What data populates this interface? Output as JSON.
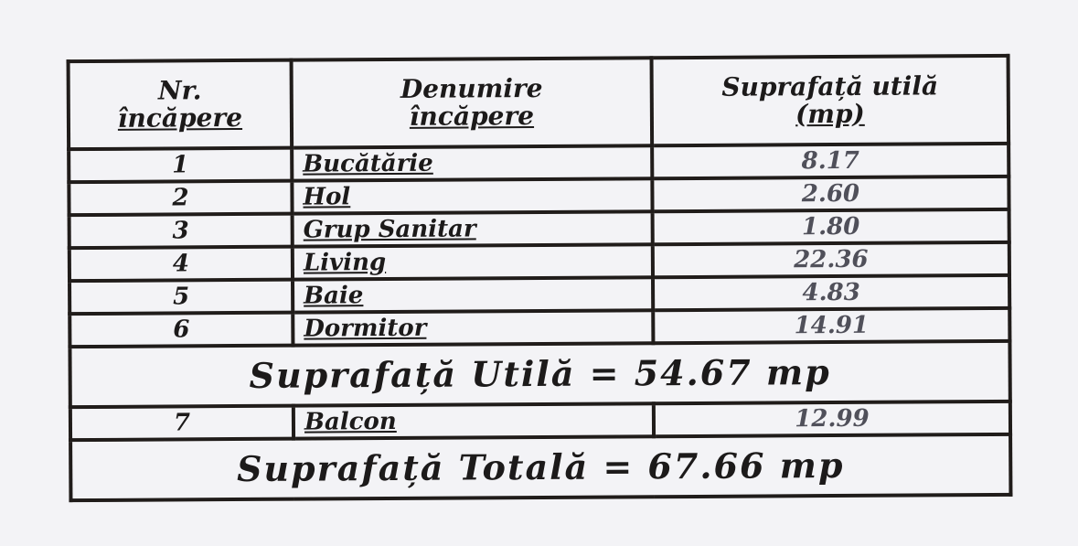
{
  "table": {
    "headers": {
      "nr": [
        "Nr.",
        "încăpere"
      ],
      "name": [
        "Denumire",
        "încăpere"
      ],
      "area": [
        "Suprafață utilă",
        "(mp)"
      ]
    },
    "rows": [
      {
        "nr": "1",
        "name": "Bucătărie",
        "area": "8.17"
      },
      {
        "nr": "2",
        "name": "Hol",
        "area": "2.60"
      },
      {
        "nr": "3",
        "name": "Grup Sanitar",
        "area": "1.80"
      },
      {
        "nr": "4",
        "name": "Living",
        "area": "22.36"
      },
      {
        "nr": "5",
        "name": "Baie",
        "area": "4.83"
      },
      {
        "nr": "6",
        "name": "Dormitor",
        "area": "14.91"
      }
    ],
    "useful_total": "Suprafață Utilă = 54.67 mp",
    "balcony_row": {
      "nr": "7",
      "name": "Balcon",
      "area": "12.99"
    },
    "grand_total": "Suprafață Totală = 67.66 mp"
  }
}
